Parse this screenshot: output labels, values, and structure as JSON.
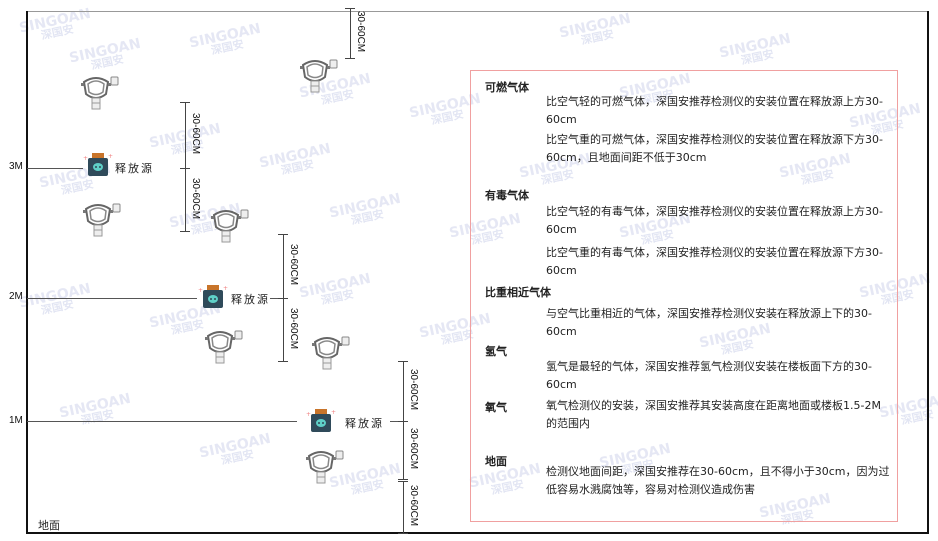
{
  "levels": {
    "m3": "3M",
    "m2": "2M",
    "m1": "1M",
    "floor": "地面"
  },
  "source_label": "释放源",
  "dimension_label": "30-60CM",
  "watermark": {
    "brand": "SINGOAN",
    "cn": "深国安"
  },
  "colors": {
    "info_border": "#f0a0a0",
    "source_body": "#2f4a5a",
    "source_cap": "#c8742a",
    "source_icon": "#5fd0c8"
  },
  "info": {
    "combustible": {
      "title": "可燃气体",
      "lighter": "比空气轻的可燃气体，深国安推荐检测仪的安装位置在释放源上方30-60cm",
      "heavier": "比空气重的可燃气体，深国安推荐检测仪的安装位置在释放源下方30-60cm，且地面间距不低于30cm"
    },
    "toxic": {
      "title": "有毒气体",
      "lighter": "比空气轻的有毒气体，深国安推荐检测仪的安装位置在释放源上方30-60cm",
      "heavier": "比空气重的有毒气体，深国安推荐检测仪的安装位置在释放源下方30-60cm"
    },
    "similar": {
      "title": "比重相近气体",
      "text": "与空气比重相近的气体，深国安推荐检测仪安装在释放源上下的30-60cm"
    },
    "hydrogen": {
      "title": "氢气",
      "text": "氢气是最轻的气体，深国安推荐氢气检测仪安装在楼板面下方的30-60cm"
    },
    "oxygen": {
      "title": "氧气",
      "text": "氧气检测仪的安装，深国安推荐其安装高度在距离地面或楼板1.5-2M的范围内"
    },
    "floor": {
      "title": "地面",
      "text": "检测仪地面间距，深国安推荐在30-60cm，且不得小于30cm，因为过低容易水溅腐蚀等，容易对检测仪造成伤害"
    }
  }
}
